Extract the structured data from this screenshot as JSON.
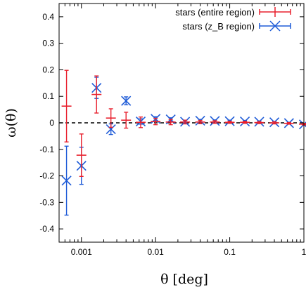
{
  "chart_data": {
    "type": "scatter",
    "title": "",
    "xlabel": "θ [deg]",
    "ylabel": "ω(θ)",
    "xscale": "log",
    "xlim": [
      0.0005,
      1
    ],
    "ylim": [
      -0.45,
      0.45
    ],
    "xticks": [
      {
        "value": 0.001,
        "label": "0.001"
      },
      {
        "value": 0.01,
        "label": "0.01"
      },
      {
        "value": 0.1,
        "label": "0.1"
      },
      {
        "value": 1,
        "label": "1"
      }
    ],
    "yticks": [
      {
        "value": 0.4,
        "label": "0.4"
      },
      {
        "value": 0.3,
        "label": "0.3"
      },
      {
        "value": 0.2,
        "label": "0.2"
      },
      {
        "value": 0.1,
        "label": "0.1"
      },
      {
        "value": 0,
        "label": "0"
      },
      {
        "value": -0.1,
        "label": "-0.1"
      },
      {
        "value": -0.2,
        "label": "-0.2"
      },
      {
        "value": -0.3,
        "label": "-0.3"
      },
      {
        "value": -0.4,
        "label": "-0.4"
      }
    ],
    "reference_line": {
      "y": 0,
      "style": "dashed",
      "color": "#000000"
    },
    "grid": false,
    "legend_position": "top-right",
    "series": [
      {
        "name": "stars (entire region)",
        "color": "#e8212e",
        "marker": "plus",
        "x": [
          0.00063,
          0.001,
          0.0016,
          0.0025,
          0.004,
          0.0063,
          0.01,
          0.016,
          0.025,
          0.04,
          0.063,
          0.1,
          0.16,
          0.25,
          0.4,
          0.63,
          1.0
        ],
        "y": [
          0.063,
          -0.122,
          0.107,
          0.018,
          0.01,
          0.002,
          0.005,
          0.003,
          0.003,
          0.003,
          0.003,
          0.002,
          0.002,
          0.001,
          0.0,
          -0.002,
          -0.005
        ],
        "err": [
          0.135,
          0.08,
          0.07,
          0.035,
          0.03,
          0.02,
          0.012,
          0.01,
          0.007,
          0.006,
          0.005,
          0.004,
          0.004,
          0.004,
          0.004,
          0.003,
          0.003
        ]
      },
      {
        "name": "stars (z_B region)",
        "color": "#1e5bd7",
        "marker": "x",
        "x": [
          0.00063,
          0.001,
          0.0016,
          0.0025,
          0.004,
          0.0063,
          0.01,
          0.016,
          0.025,
          0.04,
          0.063,
          0.1,
          0.16,
          0.25,
          0.4,
          0.63,
          1.0
        ],
        "y": [
          -0.218,
          -0.162,
          0.132,
          -0.024,
          0.083,
          0.005,
          0.015,
          0.013,
          0.004,
          0.008,
          0.007,
          0.006,
          0.005,
          0.004,
          0.002,
          -0.001,
          -0.006
        ],
        "err": [
          0.13,
          0.07,
          0.04,
          0.02,
          0.015,
          0.01,
          0.008,
          0.006,
          0.005,
          0.005,
          0.004,
          0.004,
          0.004,
          0.003,
          0.003,
          0.003,
          0.003
        ]
      }
    ]
  }
}
